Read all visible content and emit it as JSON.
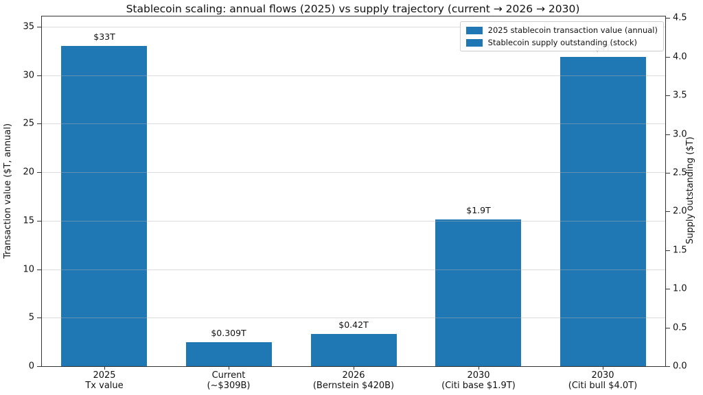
{
  "chart_data": {
    "type": "bar",
    "title": "Stablecoin scaling: annual flows (2025) vs supply trajectory (current → 2026 → 2030)",
    "categories": [
      [
        "2025",
        "Tx value"
      ],
      [
        "Current",
        "(~$309B)"
      ],
      [
        "2026",
        "(Bernstein $420B)"
      ],
      [
        "2030",
        "(Citi base $1.9T)"
      ],
      [
        "2030",
        "(Citi bull $4.0T)"
      ]
    ],
    "series": [
      {
        "name": "2025 stablecoin transaction value (annual)",
        "axis": "left",
        "values": [
          33,
          null,
          null,
          null,
          null
        ]
      },
      {
        "name": "Stablecoin supply outstanding (stock)",
        "axis": "right",
        "values": [
          null,
          0.309,
          0.42,
          1.9,
          4.0
        ]
      }
    ],
    "bar_labels": [
      "$33T",
      "$0.309T",
      "$0.42T",
      "$1.9T",
      "$4T"
    ],
    "bar_color": "#1f77b4",
    "ylabel_left": "Transaction value ($T, annual)",
    "ylabel_right": "Supply outstanding ($T)",
    "yticks_left": [
      0,
      5,
      10,
      15,
      20,
      25,
      30,
      35
    ],
    "yticks_right": [
      "0.0",
      "0.5",
      "1.0",
      "1.5",
      "2.0",
      "2.5",
      "3.0",
      "3.5",
      "4.0",
      "4.5"
    ],
    "ylim_left": [
      0,
      36.06
    ],
    "ylim_right": [
      0,
      4.52
    ],
    "grid": "horizontal gridlines at left-axis ticks, drawn over bars",
    "legend_position": "upper right"
  }
}
